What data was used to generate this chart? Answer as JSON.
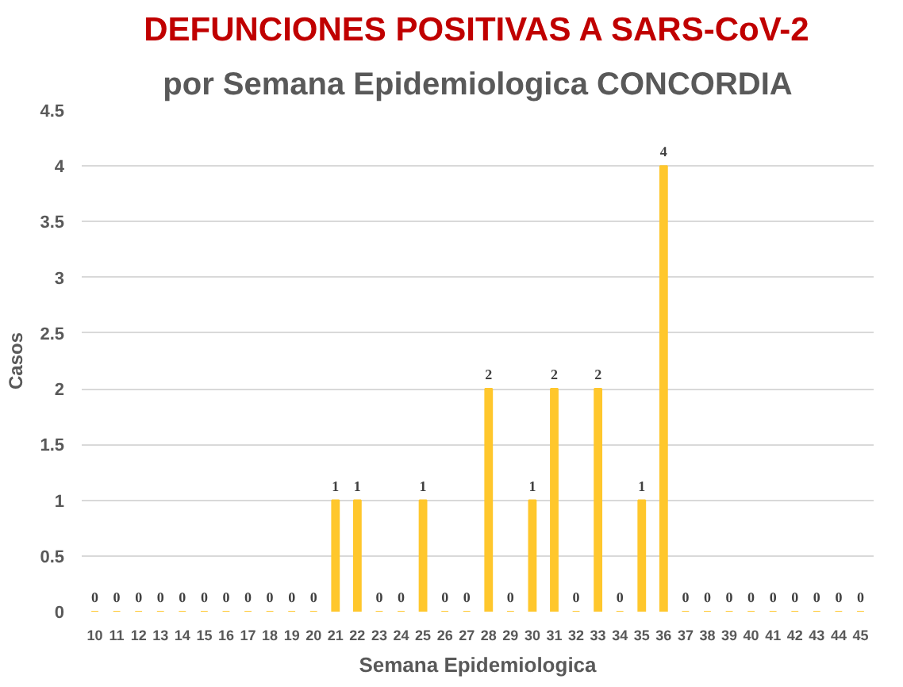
{
  "chart_data": {
    "type": "bar",
    "title": "DEFUNCIONES POSITIVAS A SARS-CoV-2",
    "subtitle": "por Semana Epidemiologica CONCORDIA",
    "xlabel": "Semana Epidemiologica",
    "ylabel": "Casos",
    "categories": [
      "10",
      "11",
      "12",
      "13",
      "14",
      "15",
      "16",
      "17",
      "18",
      "19",
      "20",
      "21",
      "22",
      "23",
      "24",
      "25",
      "26",
      "27",
      "28",
      "29",
      "30",
      "31",
      "32",
      "33",
      "34",
      "35",
      "36",
      "37",
      "38",
      "39",
      "40",
      "41",
      "42",
      "43",
      "44",
      "45"
    ],
    "values": [
      0,
      0,
      0,
      0,
      0,
      0,
      0,
      0,
      0,
      0,
      0,
      1,
      1,
      0,
      0,
      1,
      0,
      0,
      2,
      0,
      1,
      2,
      0,
      2,
      0,
      1,
      4,
      0,
      0,
      0,
      0,
      0,
      0,
      0,
      0,
      0
    ],
    "color": "#ffc72c",
    "ylim": [
      0,
      4.5
    ],
    "yticks": [
      0,
      0.5,
      1,
      1.5,
      2,
      2.5,
      3,
      3.5,
      4,
      4.5
    ],
    "grid": "y",
    "data_labels": true
  }
}
